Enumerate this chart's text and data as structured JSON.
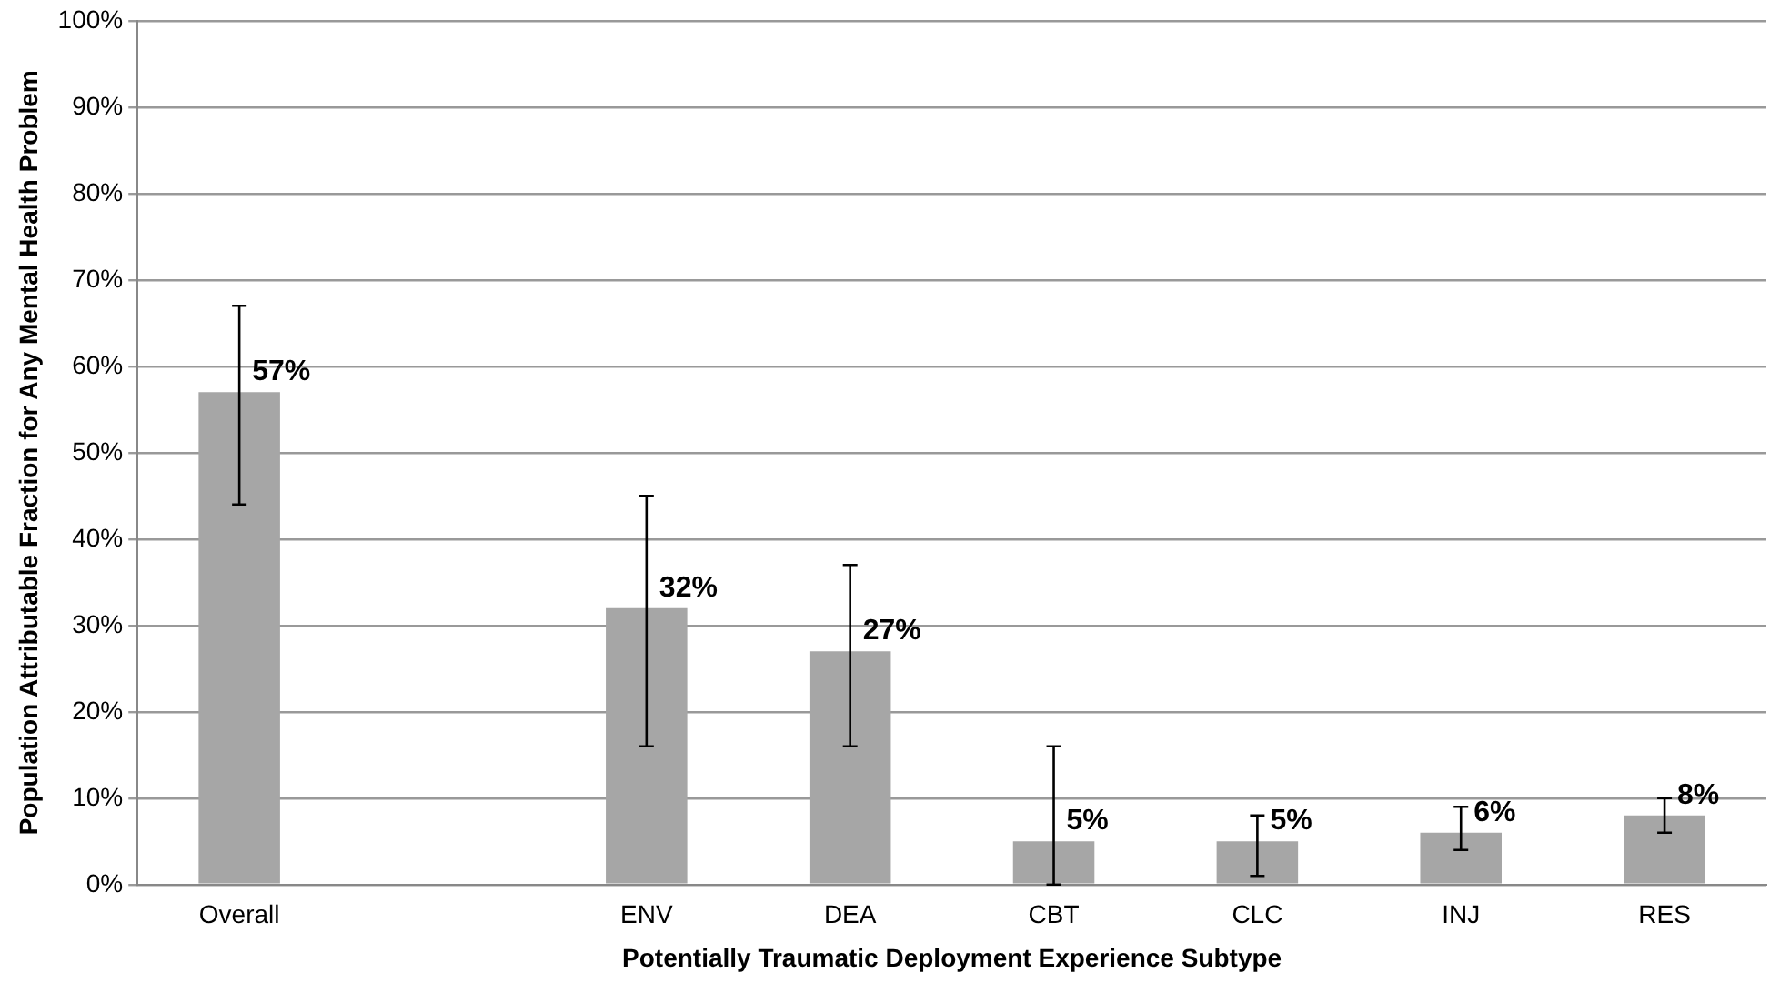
{
  "chart_data": {
    "type": "bar",
    "xlabel": "Potentially Traumatic Deployment Experience Subtype",
    "ylabel": "Population Attributable Fraction for Any Mental Health Problem",
    "categories": [
      "Overall",
      null,
      "ENV",
      "DEA",
      "CBT",
      "CLC",
      "INJ",
      "RES"
    ],
    "values": [
      57,
      null,
      32,
      27,
      5,
      5,
      6,
      8
    ],
    "errors": [
      [
        44,
        67
      ],
      null,
      [
        16,
        45
      ],
      [
        16,
        37
      ],
      [
        0,
        16
      ],
      [
        1,
        8
      ],
      [
        4,
        9
      ],
      [
        6,
        10
      ]
    ],
    "value_labels": [
      "57%",
      null,
      "32%",
      "27%",
      "5%",
      "5%",
      "6%",
      "8%"
    ],
    "color": "#a6a6a6",
    "ylim": [
      0,
      100
    ],
    "yticks": [
      {
        "value": 0,
        "label": "0%"
      },
      {
        "value": 10,
        "label": "10%"
      },
      {
        "value": 20,
        "label": "20%"
      },
      {
        "value": 30,
        "label": "30%"
      },
      {
        "value": 40,
        "label": "40%"
      },
      {
        "value": 50,
        "label": "50%"
      },
      {
        "value": 60,
        "label": "60%"
      },
      {
        "value": 70,
        "label": "70%"
      },
      {
        "value": 80,
        "label": "80%"
      },
      {
        "value": 90,
        "label": "90%"
      },
      {
        "value": 100,
        "label": "100%"
      }
    ],
    "grid": "y",
    "legend": false
  }
}
